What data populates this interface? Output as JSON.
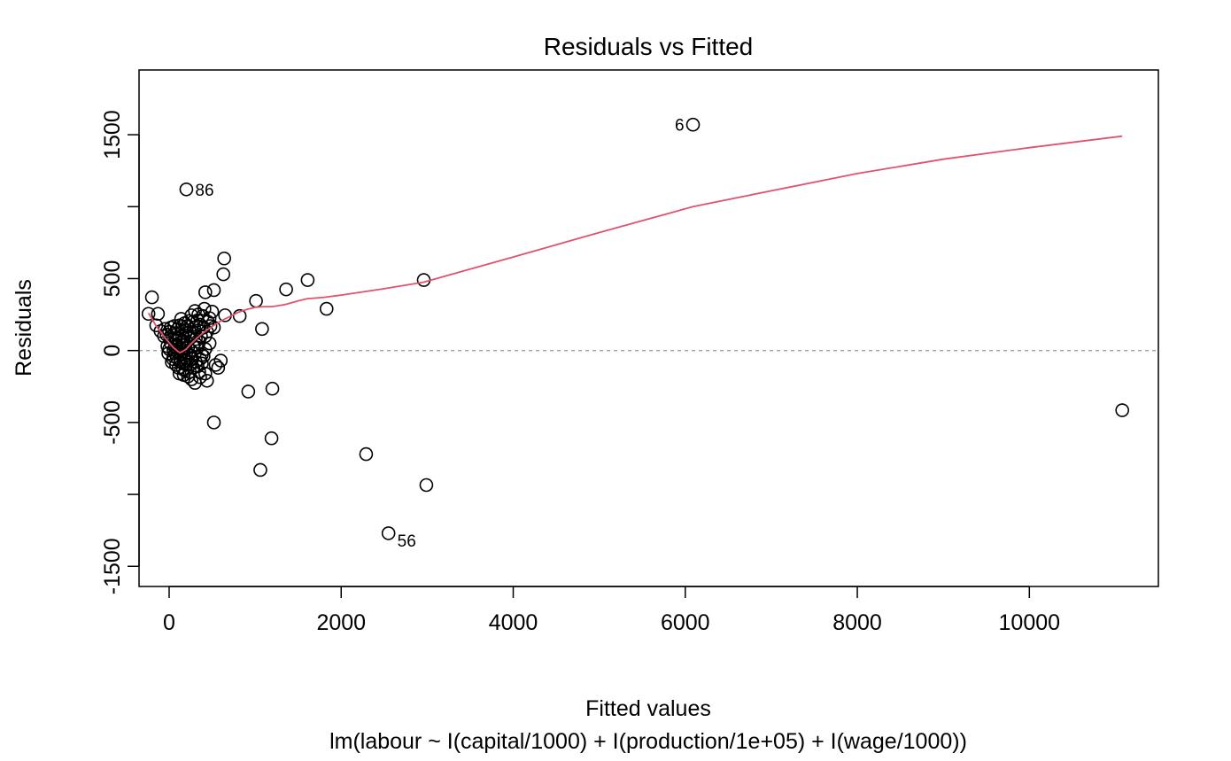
{
  "chart_data": {
    "type": "scatter",
    "title": "Residuals vs Fitted",
    "xlabel": "Fitted values",
    "subtitle": "lm(labour ~ I(capital/1000) + I(production/1e+05) + I(wage/1000))",
    "ylabel": "Residuals",
    "xlim": [
      -350,
      11500
    ],
    "ylim": [
      -1640,
      1950
    ],
    "xticks": [
      0,
      2000,
      4000,
      6000,
      8000,
      10000
    ],
    "xtick_labels": [
      "0",
      "2000",
      "4000",
      "6000",
      "8000",
      "10000"
    ],
    "yticks": [
      -1500,
      -1000,
      -500,
      0,
      500,
      1000,
      1500
    ],
    "ytick_labels": [
      "-1500",
      "",
      "-500",
      "0",
      "500",
      "",
      "1500"
    ],
    "zero_line": 0,
    "grid": false,
    "colors": {
      "points": "#000000",
      "smooth": "#DF536B",
      "zero_line": "#9E9E9E"
    },
    "points": [
      [
        6090,
        1570
      ],
      [
        200,
        1120
      ],
      [
        2550,
        -1270
      ],
      [
        11080,
        -415
      ],
      [
        640,
        640
      ],
      [
        1610,
        490
      ],
      [
        2960,
        490
      ],
      [
        630,
        530
      ],
      [
        1360,
        425
      ],
      [
        520,
        420
      ],
      [
        420,
        405
      ],
      [
        1010,
        345
      ],
      [
        -200,
        370
      ],
      [
        1830,
        290
      ],
      [
        300,
        275
      ],
      [
        650,
        245
      ],
      [
        820,
        240
      ],
      [
        -240,
        255
      ],
      [
        -130,
        255
      ],
      [
        500,
        270
      ],
      [
        260,
        245
      ],
      [
        340,
        250
      ],
      [
        410,
        290
      ],
      [
        390,
        240
      ],
      [
        470,
        225
      ],
      [
        1080,
        150
      ],
      [
        360,
        180
      ],
      [
        520,
        160
      ],
      [
        450,
        200
      ],
      [
        140,
        220
      ],
      [
        230,
        205
      ],
      [
        180,
        190
      ],
      [
        120,
        175
      ],
      [
        60,
        170
      ],
      [
        20,
        160
      ],
      [
        -50,
        150
      ],
      [
        -150,
        175
      ],
      [
        -100,
        135
      ],
      [
        -30,
        110
      ],
      [
        10,
        95
      ],
      [
        40,
        80
      ],
      [
        80,
        70
      ],
      [
        100,
        120
      ],
      [
        150,
        100
      ],
      [
        200,
        140
      ],
      [
        250,
        90
      ],
      [
        300,
        120
      ],
      [
        350,
        60
      ],
      [
        420,
        100
      ],
      [
        470,
        50
      ],
      [
        280,
        30
      ],
      [
        180,
        40
      ],
      [
        130,
        20
      ],
      [
        70,
        30
      ],
      [
        20,
        50
      ],
      [
        -20,
        30
      ],
      [
        0,
        10
      ],
      [
        50,
        5
      ],
      [
        100,
        -10
      ],
      [
        150,
        10
      ],
      [
        200,
        -15
      ],
      [
        250,
        0
      ],
      [
        300,
        -20
      ],
      [
        330,
        20
      ],
      [
        380,
        -30
      ],
      [
        420,
        10
      ],
      [
        50,
        -40
      ],
      [
        90,
        -50
      ],
      [
        130,
        -60
      ],
      [
        170,
        -45
      ],
      [
        210,
        -70
      ],
      [
        260,
        -55
      ],
      [
        310,
        -80
      ],
      [
        360,
        -60
      ],
      [
        400,
        -40
      ],
      [
        -10,
        -20
      ],
      [
        30,
        -80
      ],
      [
        80,
        -100
      ],
      [
        110,
        -120
      ],
      [
        160,
        -130
      ],
      [
        200,
        -100
      ],
      [
        240,
        -150
      ],
      [
        280,
        -120
      ],
      [
        330,
        -110
      ],
      [
        380,
        -90
      ],
      [
        120,
        -160
      ],
      [
        170,
        -170
      ],
      [
        220,
        -180
      ],
      [
        260,
        -200
      ],
      [
        300,
        -225
      ],
      [
        360,
        -185
      ],
      [
        420,
        -160
      ],
      [
        440,
        -210
      ],
      [
        540,
        -100
      ],
      [
        570,
        -120
      ],
      [
        600,
        -70
      ],
      [
        920,
        -285
      ],
      [
        1200,
        -265
      ],
      [
        520,
        -500
      ],
      [
        1190,
        -610
      ],
      [
        1060,
        -830
      ],
      [
        2290,
        -720
      ],
      [
        2990,
        -935
      ],
      [
        60,
        120
      ],
      [
        100,
        150
      ],
      [
        150,
        165
      ],
      [
        190,
        120
      ],
      [
        240,
        130
      ],
      [
        290,
        160
      ],
      [
        340,
        140
      ],
      [
        0,
        130
      ],
      [
        -60,
        100
      ],
      [
        70,
        -20
      ],
      [
        140,
        -30
      ],
      [
        180,
        -90
      ],
      [
        230,
        -30
      ],
      [
        270,
        -60
      ],
      [
        320,
        40
      ],
      [
        370,
        100
      ],
      [
        150,
        60
      ],
      [
        90,
        40
      ],
      [
        45,
        -60
      ],
      [
        200,
        60
      ],
      [
        260,
        100
      ],
      [
        310,
        80
      ],
      [
        400,
        160
      ],
      [
        440,
        130
      ],
      [
        480,
        170
      ],
      [
        110,
        80
      ],
      [
        160,
        -5
      ],
      [
        220,
        20
      ],
      [
        130,
        -80
      ],
      [
        190,
        -140
      ],
      [
        240,
        -100
      ],
      [
        350,
        -150
      ],
      [
        280,
        200
      ],
      [
        330,
        210
      ],
      [
        210,
        170
      ]
    ],
    "smooth_line": [
      [
        -240,
        260
      ],
      [
        -200,
        220
      ],
      [
        -150,
        170
      ],
      [
        -100,
        130
      ],
      [
        -50,
        90
      ],
      [
        0,
        55
      ],
      [
        50,
        20
      ],
      [
        100,
        -5
      ],
      [
        125,
        -15
      ],
      [
        160,
        -5
      ],
      [
        200,
        10
      ],
      [
        260,
        50
      ],
      [
        330,
        90
      ],
      [
        400,
        125
      ],
      [
        480,
        160
      ],
      [
        520,
        175
      ],
      [
        600,
        205
      ],
      [
        700,
        235
      ],
      [
        800,
        265
      ],
      [
        900,
        285
      ],
      [
        1000,
        300
      ],
      [
        1100,
        305
      ],
      [
        1200,
        305
      ],
      [
        1350,
        320
      ],
      [
        1500,
        345
      ],
      [
        1600,
        360
      ],
      [
        1800,
        370
      ],
      [
        2000,
        385
      ],
      [
        2500,
        430
      ],
      [
        2960,
        475
      ],
      [
        4000,
        650
      ],
      [
        5000,
        820
      ],
      [
        6090,
        1000
      ],
      [
        7000,
        1110
      ],
      [
        8000,
        1230
      ],
      [
        9000,
        1330
      ],
      [
        10000,
        1410
      ],
      [
        11080,
        1490
      ]
    ],
    "labels": [
      {
        "text": "6",
        "x": 6090,
        "y": 1570,
        "pos": "left"
      },
      {
        "text": "86",
        "x": 200,
        "y": 1120,
        "pos": "right"
      },
      {
        "text": "56",
        "x": 2550,
        "y": -1270,
        "pos": "right-below"
      }
    ]
  }
}
